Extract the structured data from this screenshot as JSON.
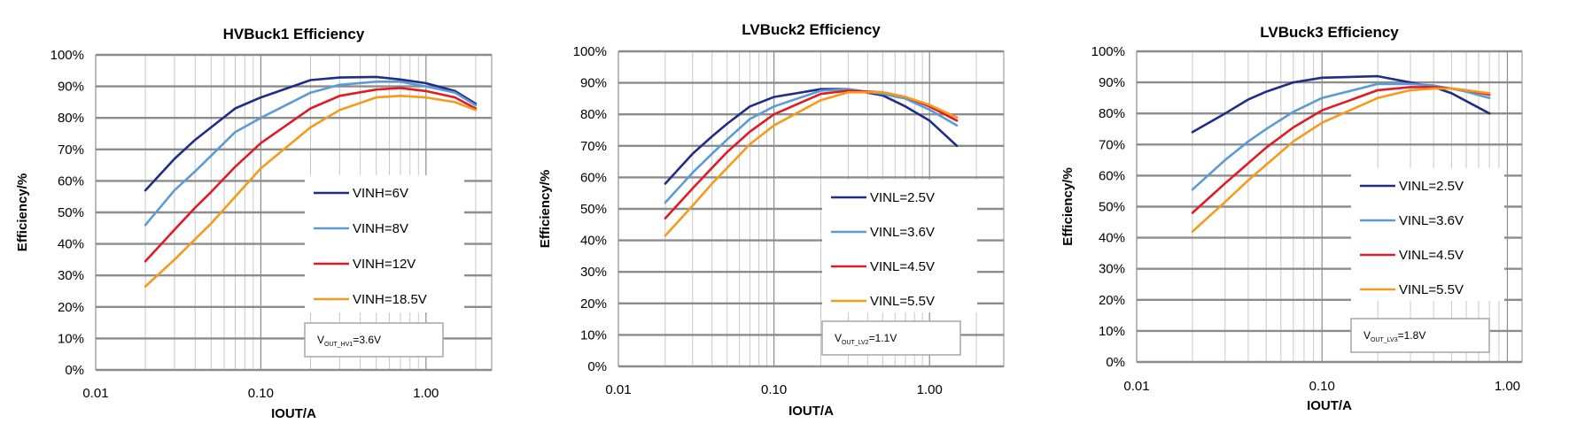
{
  "chart_data": [
    {
      "type": "line",
      "title": "HVBuck1 Efficiency",
      "xlabel": "IOUT/A",
      "ylabel": "Efficiency/%",
      "xscale": "log",
      "xlim": [
        0.01,
        2.5
      ],
      "ylim": [
        0,
        100
      ],
      "xticks": [
        "0.01",
        "0.10",
        "1.00"
      ],
      "yticks": [
        "0%",
        "10%",
        "20%",
        "30%",
        "40%",
        "50%",
        "60%",
        "70%",
        "80%",
        "90%",
        "100%"
      ],
      "grid": true,
      "legend_position": "center-right",
      "note": {
        "main": "V",
        "sub": "OUT_HV1",
        "rest": "=3.6V"
      },
      "x": [
        0.02,
        0.03,
        0.04,
        0.05,
        0.07,
        0.1,
        0.2,
        0.3,
        0.5,
        0.7,
        1.0,
        1.5,
        2.0
      ],
      "series": [
        {
          "name": "VINH=6V",
          "color": "#1f2d86",
          "values": [
            57,
            67,
            73,
            77,
            83,
            86.5,
            92,
            92.8,
            93,
            92.2,
            91,
            88.5,
            84.5
          ]
        },
        {
          "name": "VINH=8V",
          "color": "#5b9bd5",
          "values": [
            46,
            57,
            63,
            68,
            75.5,
            80,
            88,
            90.5,
            91.5,
            91.5,
            90,
            88,
            84
          ]
        },
        {
          "name": "VINH=12V",
          "color": "#e01b24",
          "values": [
            34.5,
            44.5,
            51.5,
            56.5,
            64.5,
            72,
            83,
            87,
            89,
            89.5,
            88.5,
            86.5,
            83
          ]
        },
        {
          "name": "VINH=18.5V",
          "color": "#f59a1b",
          "values": [
            26.5,
            35,
            41.5,
            46.5,
            55,
            64,
            77,
            82.5,
            86.5,
            87,
            86.5,
            85,
            82.5
          ]
        }
      ]
    },
    {
      "type": "line",
      "title": "LVBuck2 Efficiency",
      "xlabel": "IOUT/A",
      "ylabel": "Efficiency/%",
      "xscale": "log",
      "xlim": [
        0.01,
        3
      ],
      "ylim": [
        0,
        100
      ],
      "xticks": [
        "0.01",
        "0.10",
        "1.00"
      ],
      "yticks": [
        "0%",
        "10%",
        "20%",
        "30%",
        "40%",
        "50%",
        "60%",
        "70%",
        "80%",
        "90%",
        "100%"
      ],
      "grid": true,
      "legend_position": "center-right",
      "note": {
        "main": "V",
        "sub": "OUT_LV2",
        "rest": "=1.1V"
      },
      "x": [
        0.02,
        0.03,
        0.04,
        0.05,
        0.07,
        0.1,
        0.2,
        0.3,
        0.5,
        0.7,
        1.0,
        1.5
      ],
      "series": [
        {
          "name": "VINL=2.5V",
          "color": "#1f2d86",
          "values": [
            58,
            67.5,
            73,
            77,
            82.5,
            85.5,
            88,
            88,
            86,
            82.5,
            78,
            70
          ]
        },
        {
          "name": "VINL=3.6V",
          "color": "#5b9bd5",
          "values": [
            52,
            61.5,
            67.5,
            72,
            78.5,
            82.5,
            87.5,
            88,
            86.5,
            85,
            81.5,
            76.5
          ]
        },
        {
          "name": "VINL=4.5V",
          "color": "#e01b24",
          "values": [
            47,
            56.5,
            63,
            68,
            74.5,
            80,
            86.5,
            87.5,
            87,
            85.5,
            82.5,
            78
          ]
        },
        {
          "name": "VINL=5.5V",
          "color": "#f59a1b",
          "values": [
            41.5,
            51,
            58,
            63,
            70.5,
            76.5,
            84.5,
            87,
            87,
            85.5,
            83,
            79
          ]
        }
      ]
    },
    {
      "type": "line",
      "title": "LVBuck3 Efficiency",
      "xlabel": "IOUT/A",
      "ylabel": "Efficiency/%",
      "xscale": "log",
      "xlim": [
        0.01,
        1.2
      ],
      "ylim": [
        0,
        100
      ],
      "xticks": [
        "0.01",
        "0.10",
        "1.00"
      ],
      "yticks": [
        "0%",
        "10%",
        "20%",
        "30%",
        "40%",
        "50%",
        "60%",
        "70%",
        "80%",
        "90%",
        "100%"
      ],
      "grid": true,
      "legend_position": "center-right",
      "note": {
        "main": "V",
        "sub": "OUT_LV3",
        "rest": "=1.8V"
      },
      "x": [
        0.02,
        0.03,
        0.04,
        0.05,
        0.07,
        0.1,
        0.2,
        0.3,
        0.4,
        0.5,
        0.6,
        0.8
      ],
      "series": [
        {
          "name": "VINL=2.5V",
          "color": "#1f2d86",
          "values": [
            74,
            80,
            84.5,
            87,
            90,
            91.5,
            92,
            90,
            88.5,
            86.5,
            84,
            80
          ]
        },
        {
          "name": "VINL=3.6V",
          "color": "#5b9bd5",
          "values": [
            55.5,
            65,
            71,
            75,
            80.5,
            85,
            89.5,
            89.5,
            89,
            88,
            87,
            85
          ]
        },
        {
          "name": "VINL=4.5V",
          "color": "#e01b24",
          "values": [
            48,
            57.5,
            64,
            69,
            75.5,
            81,
            87.5,
            88.5,
            88.5,
            88,
            87.5,
            86
          ]
        },
        {
          "name": "VINL=5.5V",
          "color": "#f59a1b",
          "values": [
            42,
            51.5,
            58.5,
            63.5,
            71,
            77,
            85,
            87.5,
            88,
            88,
            87.5,
            86.5
          ]
        }
      ]
    }
  ]
}
